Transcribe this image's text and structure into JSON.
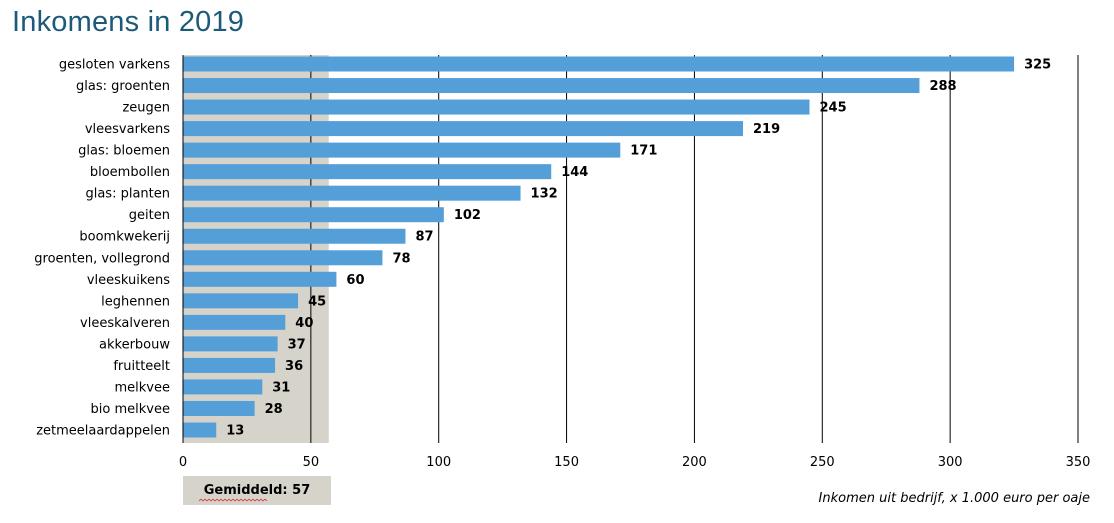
{
  "chart_data": {
    "type": "bar",
    "orientation": "horizontal",
    "title": "Inkomens in 2019",
    "categories": [
      "gesloten varkens",
      "glas: groenten",
      "zeugen",
      "vleesvarkens",
      "glas: bloemen",
      "bloembollen",
      "glas: planten",
      "geiten",
      "boomkwekerij",
      "groenten, vollegrond",
      "vleeskuikens",
      "leghennen",
      "vleeskalveren",
      "akkerbouw",
      "fruitteelt",
      "melkvee",
      "bio melkvee",
      "zetmeelaardappelen"
    ],
    "values": [
      325,
      288,
      245,
      219,
      171,
      144,
      132,
      102,
      87,
      78,
      60,
      45,
      40,
      37,
      36,
      31,
      28,
      13
    ],
    "xlim": [
      0,
      350
    ],
    "xticks": [
      0,
      50,
      100,
      150,
      200,
      250,
      300,
      350
    ],
    "grid": "vertical",
    "bar_color": "#559fd8",
    "average": {
      "label": "Gemiddeld: 57",
      "value": 57,
      "color": "#d6d3ca"
    },
    "xlabel": "Inkomen uit bedrijf, x 1.000 euro per oaje"
  }
}
